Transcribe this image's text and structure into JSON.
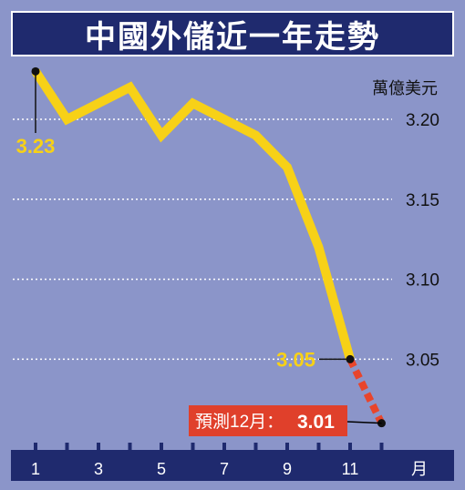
{
  "chart_data": {
    "type": "line",
    "title": "中國外儲近一年走勢",
    "unit_label": "萬億美元",
    "x_axis_unit": "月",
    "x": [
      1,
      2,
      3,
      4,
      5,
      6,
      7,
      8,
      9,
      10,
      11
    ],
    "x_tick_labels": [
      "1",
      "3",
      "5",
      "7",
      "9",
      "11"
    ],
    "x_tick_values": [
      1,
      3,
      5,
      7,
      9,
      11
    ],
    "values": [
      3.23,
      3.2,
      3.21,
      3.22,
      3.19,
      3.21,
      3.2,
      3.19,
      3.17,
      3.12,
      3.05
    ],
    "forecast": {
      "label": "預測12月：",
      "x": 12,
      "value": 3.01,
      "value_label": "3.01"
    },
    "annotations": [
      {
        "x": 1,
        "value": 3.23,
        "label": "3.23"
      },
      {
        "x": 11,
        "value": 3.05,
        "label": "3.05"
      }
    ],
    "y_tick_labels": [
      "3.20",
      "3.15",
      "3.10",
      "3.05"
    ],
    "y_tick_values": [
      3.2,
      3.15,
      3.1,
      3.05
    ],
    "ylim": [
      3.0,
      3.235
    ],
    "grid": true,
    "colors": {
      "background": "#8b95c9",
      "title_bar": "#1f2a6e",
      "line": "#f7d117",
      "forecast_line": "#e8452c",
      "forecast_box": "#e0402b",
      "label": "#f7d117",
      "axis_bar": "#1f2a6e"
    }
  }
}
